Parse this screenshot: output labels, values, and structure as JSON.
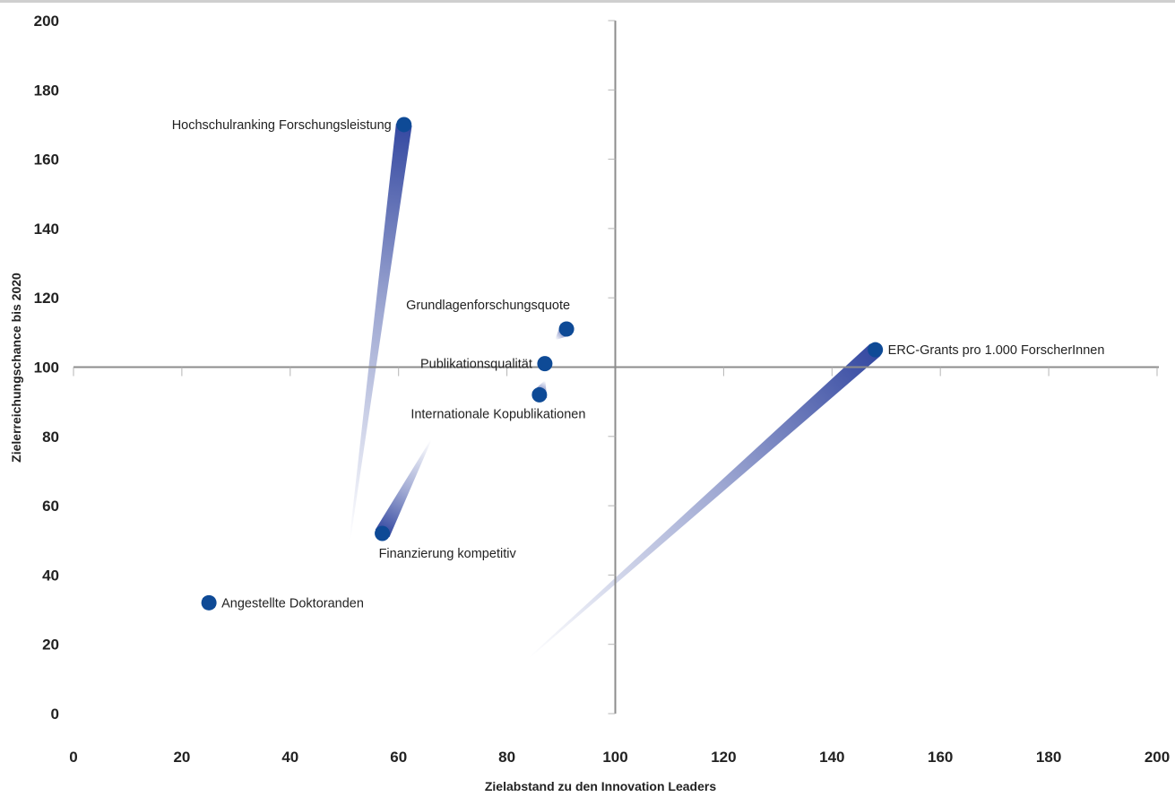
{
  "chart_data": {
    "type": "scatter",
    "title": "",
    "xlabel": "Zielabstand zu den Innovation Leaders",
    "ylabel": "Zielerreichungschance bis 2020",
    "xlim": [
      0,
      200
    ],
    "ylim": [
      0,
      200
    ],
    "x_ticks": [
      0,
      20,
      40,
      60,
      80,
      100,
      120,
      140,
      160,
      180,
      200
    ],
    "y_ticks": [
      0,
      20,
      40,
      60,
      80,
      100,
      120,
      140,
      160,
      180,
      200
    ],
    "reference_lines": {
      "x": 100,
      "y": 100
    },
    "grid": false,
    "legend": "none",
    "points": [
      {
        "label": "Hochschulranking Forschungsleistung",
        "x": 61,
        "y": 170,
        "trail_from": {
          "x": 51,
          "y": 50
        },
        "label_side": "left"
      },
      {
        "label": "Grundlagenforschungsquote",
        "x": 91,
        "y": 111,
        "trail_from": {
          "x": 89,
          "y": 108
        },
        "label_side": "above-left"
      },
      {
        "label": "Publikationsqualität",
        "x": 87,
        "y": 101,
        "trail_from": {
          "x": 86,
          "y": 102
        },
        "label_side": "left"
      },
      {
        "label": "Internationale Kopublikationen",
        "x": 86,
        "y": 92,
        "trail_from": {
          "x": 87,
          "y": 96
        },
        "label_side": "below"
      },
      {
        "label": "ERC-Grants pro 1.000 ForscherInnen",
        "x": 148,
        "y": 105,
        "trail_from": {
          "x": 84,
          "y": 16
        },
        "label_side": "right"
      },
      {
        "label": "Finanzierung kompetitiv",
        "x": 57,
        "y": 52,
        "trail_from": {
          "x": 66,
          "y": 79
        },
        "label_side": "below-right"
      },
      {
        "label": "Angestellte Doktoranden",
        "x": 25,
        "y": 32,
        "trail_from": {
          "x": 24,
          "y": 30
        },
        "label_side": "right"
      }
    ]
  },
  "colors": {
    "point": "#0e4a96",
    "trail": "#2a3f9c",
    "axis": "#8c8c8c",
    "text": "#222222",
    "background": "#ffffff"
  }
}
